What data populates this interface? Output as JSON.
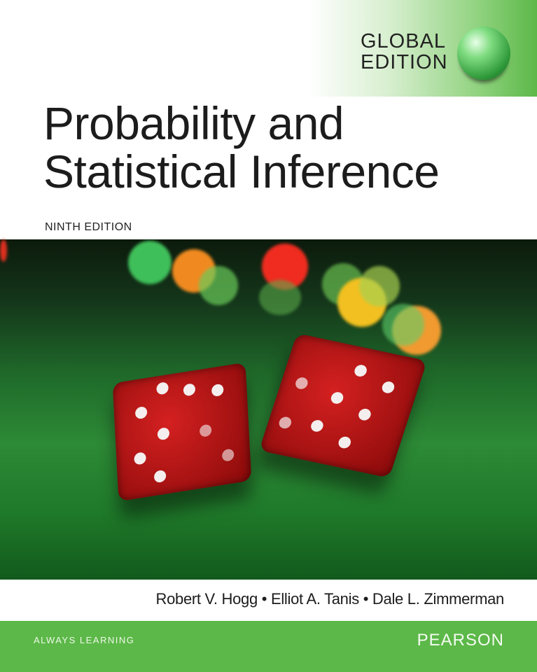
{
  "cover": {
    "badge": {
      "line1": "GLOBAL",
      "line2": "EDITION",
      "icon": "globe-icon"
    },
    "title": {
      "line1": "Probability and",
      "line2": "Statistical Inference"
    },
    "edition": "NINTH EDITION",
    "authors": "Robert V. Hogg • Elliot A. Tanis • Dale L. Zimmerman",
    "footer": {
      "tagline": "ALWAYS LEARNING",
      "publisher": "PEARSON"
    },
    "colors": {
      "brand_green": "#5cb848",
      "dice_red": "#c01818",
      "felt_green": "#2d8a36"
    }
  }
}
